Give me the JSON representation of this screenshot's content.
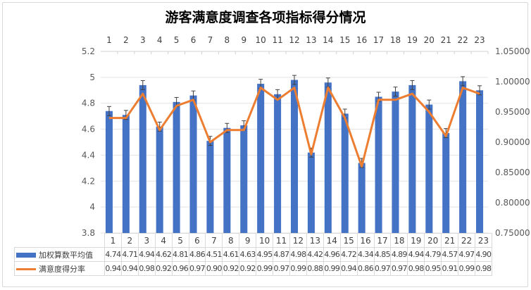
{
  "chart_data": {
    "type": "bar",
    "title": "游客满意度调查各项指标得分情况",
    "categories": [
      "1",
      "2",
      "3",
      "4",
      "5",
      "6",
      "7",
      "8",
      "9",
      "10",
      "11",
      "12",
      "13",
      "14",
      "15",
      "16",
      "17",
      "18",
      "19",
      "20",
      "21",
      "22",
      "23"
    ],
    "series": [
      {
        "name": "加权算数平均值",
        "type": "bar",
        "axis": "left",
        "color": "#4472C4",
        "values": [
          4.74,
          4.71,
          4.94,
          4.62,
          4.81,
          4.86,
          4.51,
          4.61,
          4.63,
          4.95,
          4.87,
          4.98,
          4.42,
          4.96,
          4.72,
          4.34,
          4.85,
          4.89,
          4.94,
          4.79,
          4.57,
          4.97,
          4.9
        ],
        "value_labels": [
          "4.74",
          "4.71",
          "4.94",
          "4.62",
          "4.81",
          "4.86",
          "4.51",
          "4.61",
          "4.63",
          "4.95",
          "4.87",
          "4.98",
          "4.42",
          "4.96",
          "4.72",
          "4.34",
          "4.85",
          "4.89",
          "4.94",
          "4.79",
          "4.57",
          "4.97",
          "4.90"
        ],
        "error_bars": true
      },
      {
        "name": "满意度得分率",
        "type": "line",
        "axis": "right",
        "color": "#ED7D31",
        "values": [
          0.94,
          0.94,
          0.98,
          0.92,
          0.96,
          0.97,
          0.9,
          0.92,
          0.92,
          0.99,
          0.97,
          0.99,
          0.88,
          0.99,
          0.94,
          0.86,
          0.97,
          0.97,
          0.98,
          0.95,
          0.91,
          0.99,
          0.98
        ],
        "value_labels": [
          "0.94",
          "0.94",
          "0.98",
          "0.92",
          "0.96",
          "0.97",
          "0.90",
          "0.92",
          "0.92",
          "0.99",
          "0.97",
          "0.99",
          "0.88",
          "0.99",
          "0.94",
          "0.86",
          "0.97",
          "0.97",
          "0.98",
          "0.95",
          "0.91",
          "0.99",
          "0.98"
        ]
      }
    ],
    "ylim": [
      3.8,
      5.2
    ],
    "y_ticks": [
      "3.8",
      "4",
      "4.2",
      "4.4",
      "4.6",
      "4.8",
      "5",
      "5.2"
    ],
    "y2lim": [
      0.75,
      1.05
    ],
    "y2_ticks": [
      "0.75000",
      "0.80000",
      "0.85000",
      "0.90000",
      "0.95000",
      "1.00000",
      "1.05000"
    ],
    "xlabel": "",
    "ylabel": "",
    "y2label": "",
    "grid": true,
    "legend_position": "data-table-bottom",
    "data_table": true
  }
}
